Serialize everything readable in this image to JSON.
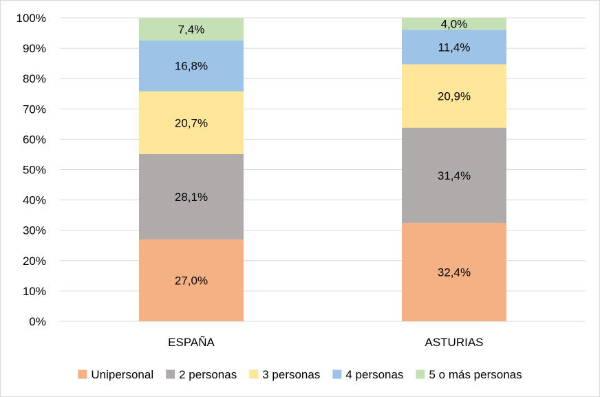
{
  "chart_data": {
    "type": "bar",
    "stacked": true,
    "categories": [
      "ESPAÑA",
      "ASTURIAS"
    ],
    "series": [
      {
        "name": "Unipersonal",
        "values": [
          27.0,
          32.4
        ],
        "labels": [
          "27,0%",
          "32,4%"
        ],
        "color": "#f4b183"
      },
      {
        "name": "2 personas",
        "values": [
          28.1,
          31.4
        ],
        "labels": [
          "28,1%",
          "31,4%"
        ],
        "color": "#afabab"
      },
      {
        "name": "3 personas",
        "values": [
          20.7,
          20.9
        ],
        "labels": [
          "20,7%",
          "20,9%"
        ],
        "color": "#ffe699"
      },
      {
        "name": "4 personas",
        "values": [
          16.8,
          11.4
        ],
        "labels": [
          "16,8%",
          "11,4%"
        ],
        "color": "#9dc3e6"
      },
      {
        "name": "5 o más personas",
        "values": [
          7.4,
          4.0
        ],
        "labels": [
          "7,4%",
          "4,0%"
        ],
        "color": "#c5e0b4"
      }
    ],
    "yticks": [
      "0%",
      "10%",
      "20%",
      "30%",
      "40%",
      "50%",
      "60%",
      "70%",
      "80%",
      "90%",
      "100%"
    ],
    "ylim": [
      0,
      100
    ],
    "grid": true,
    "legend": "bottom",
    "title": "",
    "xlabel": "",
    "ylabel": ""
  }
}
